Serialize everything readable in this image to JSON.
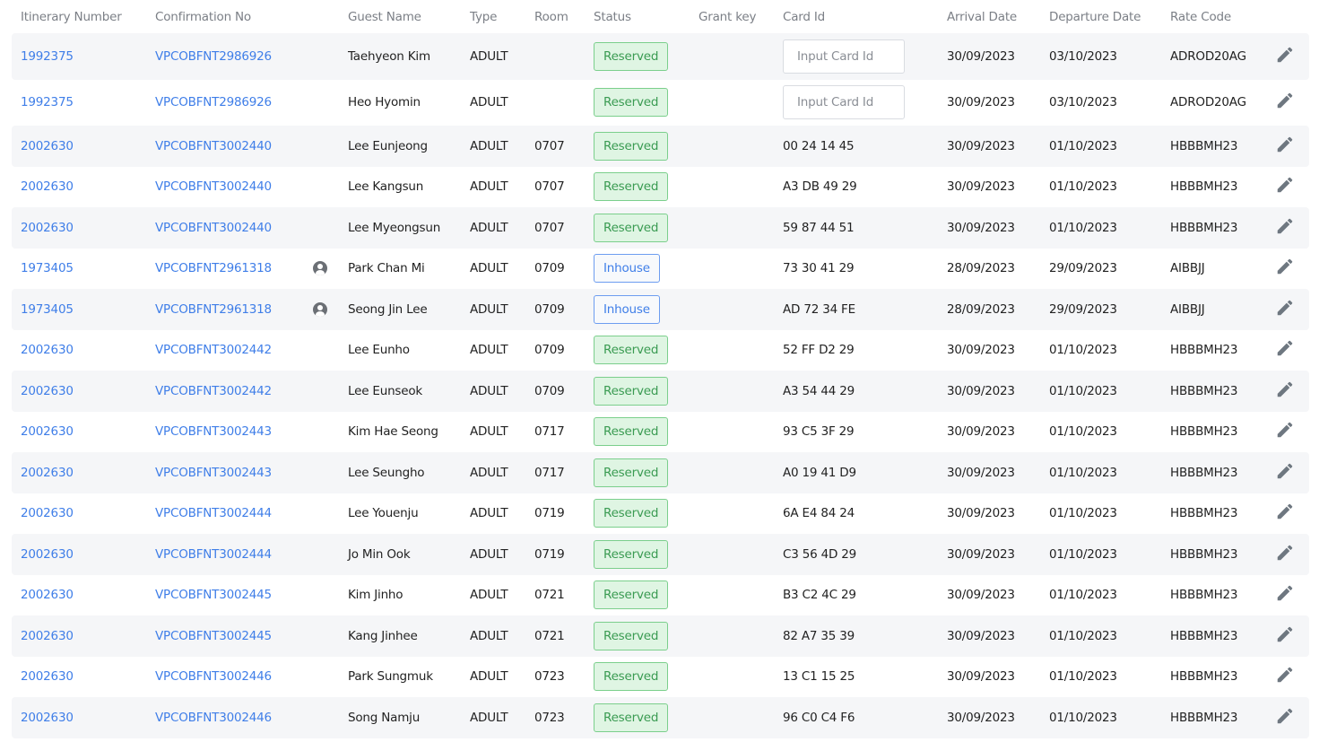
{
  "headers": [
    "Itinerary Number",
    "Confirmation No",
    "",
    "Guest Name",
    "Type",
    "Room",
    "Status",
    "Grant key",
    "Card Id",
    "Arrival Date",
    "Departure Date",
    "Rate Code",
    ""
  ],
  "card_placeholder": "Input Card Id",
  "colors": {
    "link": "#3f7ee8",
    "reserved_bg": "#dff5e3",
    "reserved_text": "#3a9b52",
    "inhouse_text": "#3f7ee8",
    "row_alt": "#f5f6f8"
  },
  "rows": [
    {
      "itinerary": "1992375",
      "confirmation": "VPCOBFNT2986926",
      "guest_icon": false,
      "guest": "Taehyeon Kim",
      "type": "ADULT",
      "room": "",
      "status": "Reserved",
      "grant_key": "",
      "card_id": null,
      "arrival": "30/09/2023",
      "departure": "03/10/2023",
      "rate": "ADROD20AG"
    },
    {
      "itinerary": "1992375",
      "confirmation": "VPCOBFNT2986926",
      "guest_icon": false,
      "guest": "Heo Hyomin",
      "type": "ADULT",
      "room": "",
      "status": "Reserved",
      "grant_key": "",
      "card_id": null,
      "arrival": "30/09/2023",
      "departure": "03/10/2023",
      "rate": "ADROD20AG"
    },
    {
      "itinerary": "2002630",
      "confirmation": "VPCOBFNT3002440",
      "guest_icon": false,
      "guest": "Lee Eunjeong",
      "type": "ADULT",
      "room": "0707",
      "status": "Reserved",
      "grant_key": "",
      "card_id": "00 24 14 45",
      "arrival": "30/09/2023",
      "departure": "01/10/2023",
      "rate": "HBBBMH23"
    },
    {
      "itinerary": "2002630",
      "confirmation": "VPCOBFNT3002440",
      "guest_icon": false,
      "guest": "Lee Kangsun",
      "type": "ADULT",
      "room": "0707",
      "status": "Reserved",
      "grant_key": "",
      "card_id": "A3 DB 49 29",
      "arrival": "30/09/2023",
      "departure": "01/10/2023",
      "rate": "HBBBMH23"
    },
    {
      "itinerary": "2002630",
      "confirmation": "VPCOBFNT3002440",
      "guest_icon": false,
      "guest": "Lee Myeongsun",
      "type": "ADULT",
      "room": "0707",
      "status": "Reserved",
      "grant_key": "",
      "card_id": "59 87 44 51",
      "arrival": "30/09/2023",
      "departure": "01/10/2023",
      "rate": "HBBBMH23"
    },
    {
      "itinerary": "1973405",
      "confirmation": "VPCOBFNT2961318",
      "guest_icon": true,
      "guest": "Park Chan Mi",
      "type": "ADULT",
      "room": "0709",
      "status": "Inhouse",
      "grant_key": "",
      "card_id": "73 30 41 29",
      "arrival": "28/09/2023",
      "departure": "29/09/2023",
      "rate": "AIBBJJ"
    },
    {
      "itinerary": "1973405",
      "confirmation": "VPCOBFNT2961318",
      "guest_icon": true,
      "guest": "Seong Jin Lee",
      "type": "ADULT",
      "room": "0709",
      "status": "Inhouse",
      "grant_key": "",
      "card_id": "AD 72 34 FE",
      "arrival": "28/09/2023",
      "departure": "29/09/2023",
      "rate": "AIBBJJ"
    },
    {
      "itinerary": "2002630",
      "confirmation": "VPCOBFNT3002442",
      "guest_icon": false,
      "guest": "Lee Eunho",
      "type": "ADULT",
      "room": "0709",
      "status": "Reserved",
      "grant_key": "",
      "card_id": "52 FF D2 29",
      "arrival": "30/09/2023",
      "departure": "01/10/2023",
      "rate": "HBBBMH23"
    },
    {
      "itinerary": "2002630",
      "confirmation": "VPCOBFNT3002442",
      "guest_icon": false,
      "guest": "Lee Eunseok",
      "type": "ADULT",
      "room": "0709",
      "status": "Reserved",
      "grant_key": "",
      "card_id": "A3 54 44 29",
      "arrival": "30/09/2023",
      "departure": "01/10/2023",
      "rate": "HBBBMH23"
    },
    {
      "itinerary": "2002630",
      "confirmation": "VPCOBFNT3002443",
      "guest_icon": false,
      "guest": "Kim Hae Seong",
      "type": "ADULT",
      "room": "0717",
      "status": "Reserved",
      "grant_key": "",
      "card_id": "93 C5 3F 29",
      "arrival": "30/09/2023",
      "departure": "01/10/2023",
      "rate": "HBBBMH23"
    },
    {
      "itinerary": "2002630",
      "confirmation": "VPCOBFNT3002443",
      "guest_icon": false,
      "guest": "Lee Seungho",
      "type": "ADULT",
      "room": "0717",
      "status": "Reserved",
      "grant_key": "",
      "card_id": "A0 19 41 D9",
      "arrival": "30/09/2023",
      "departure": "01/10/2023",
      "rate": "HBBBMH23"
    },
    {
      "itinerary": "2002630",
      "confirmation": "VPCOBFNT3002444",
      "guest_icon": false,
      "guest": "Lee Youenju",
      "type": "ADULT",
      "room": "0719",
      "status": "Reserved",
      "grant_key": "",
      "card_id": "6A E4 84 24",
      "arrival": "30/09/2023",
      "departure": "01/10/2023",
      "rate": "HBBBMH23"
    },
    {
      "itinerary": "2002630",
      "confirmation": "VPCOBFNT3002444",
      "guest_icon": false,
      "guest": "Jo Min Ook",
      "type": "ADULT",
      "room": "0719",
      "status": "Reserved",
      "grant_key": "",
      "card_id": "C3 56 4D 29",
      "arrival": "30/09/2023",
      "departure": "01/10/2023",
      "rate": "HBBBMH23"
    },
    {
      "itinerary": "2002630",
      "confirmation": "VPCOBFNT3002445",
      "guest_icon": false,
      "guest": "Kim Jinho",
      "type": "ADULT",
      "room": "0721",
      "status": "Reserved",
      "grant_key": "",
      "card_id": "B3 C2 4C 29",
      "arrival": "30/09/2023",
      "departure": "01/10/2023",
      "rate": "HBBBMH23"
    },
    {
      "itinerary": "2002630",
      "confirmation": "VPCOBFNT3002445",
      "guest_icon": false,
      "guest": "Kang Jinhee",
      "type": "ADULT",
      "room": "0721",
      "status": "Reserved",
      "grant_key": "",
      "card_id": "82 A7 35 39",
      "arrival": "30/09/2023",
      "departure": "01/10/2023",
      "rate": "HBBBMH23"
    },
    {
      "itinerary": "2002630",
      "confirmation": "VPCOBFNT3002446",
      "guest_icon": false,
      "guest": "Park Sungmuk",
      "type": "ADULT",
      "room": "0723",
      "status": "Reserved",
      "grant_key": "",
      "card_id": "13 C1 15 25",
      "arrival": "30/09/2023",
      "departure": "01/10/2023",
      "rate": "HBBBMH23"
    },
    {
      "itinerary": "2002630",
      "confirmation": "VPCOBFNT3002446",
      "guest_icon": false,
      "guest": "Song Namju",
      "type": "ADULT",
      "room": "0723",
      "status": "Reserved",
      "grant_key": "",
      "card_id": "96 C0 C4 F6",
      "arrival": "30/09/2023",
      "departure": "01/10/2023",
      "rate": "HBBBMH23"
    }
  ]
}
